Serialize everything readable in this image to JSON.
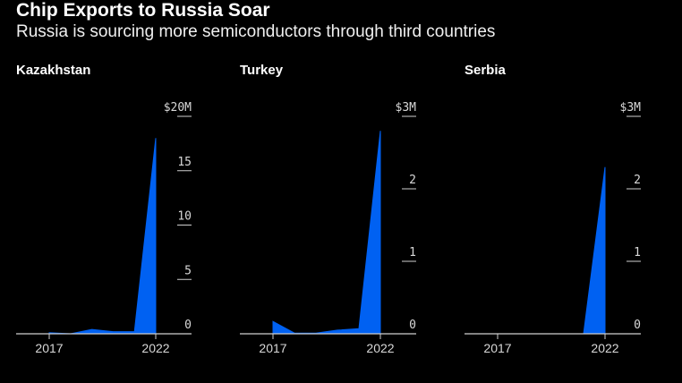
{
  "header": {
    "title": "Chip Exports to Russia Soar",
    "subtitle": "Russia is sourcing more semiconductors through third countries"
  },
  "colors": {
    "background": "#000000",
    "area": "#0061f2",
    "axis": "#cfcfcf",
    "text": "#ffffff"
  },
  "chart_data": [
    {
      "type": "area",
      "title": "Kazakhstan",
      "x": [
        2017,
        2018,
        2019,
        2020,
        2021,
        2022
      ],
      "y": [
        0.1,
        0.0,
        0.4,
        0.2,
        0.2,
        18.0
      ],
      "ylim": [
        0,
        20
      ],
      "yticks": [
        0,
        5,
        10,
        15,
        20
      ],
      "ytick_labels": [
        "0",
        "5",
        "10",
        "15",
        "$20M"
      ],
      "xticks": [
        2017,
        2022
      ],
      "xtick_labels": [
        "2017",
        "2022"
      ],
      "unit": "$M",
      "grid": false
    },
    {
      "type": "area",
      "title": "Turkey",
      "x": [
        2017,
        2018,
        2019,
        2020,
        2021,
        2022
      ],
      "y": [
        0.17,
        0.01,
        0.01,
        0.05,
        0.07,
        2.8
      ],
      "ylim": [
        0,
        3
      ],
      "yticks": [
        0,
        1,
        2,
        3
      ],
      "ytick_labels": [
        "0",
        "1",
        "2",
        "$3M"
      ],
      "xticks": [
        2017,
        2022
      ],
      "xtick_labels": [
        "2017",
        "2022"
      ],
      "unit": "$M",
      "grid": false
    },
    {
      "type": "area",
      "title": "Serbia",
      "x": [
        2017,
        2018,
        2019,
        2020,
        2021,
        2022
      ],
      "y": [
        0.0,
        0.0,
        0.0,
        0.0,
        0.0,
        2.3
      ],
      "ylim": [
        0,
        3
      ],
      "yticks": [
        0,
        1,
        2,
        3
      ],
      "ytick_labels": [
        "0",
        "1",
        "2",
        "$3M"
      ],
      "xticks": [
        2017,
        2022
      ],
      "xtick_labels": [
        "2017",
        "2022"
      ],
      "unit": "$M",
      "grid": false
    }
  ]
}
